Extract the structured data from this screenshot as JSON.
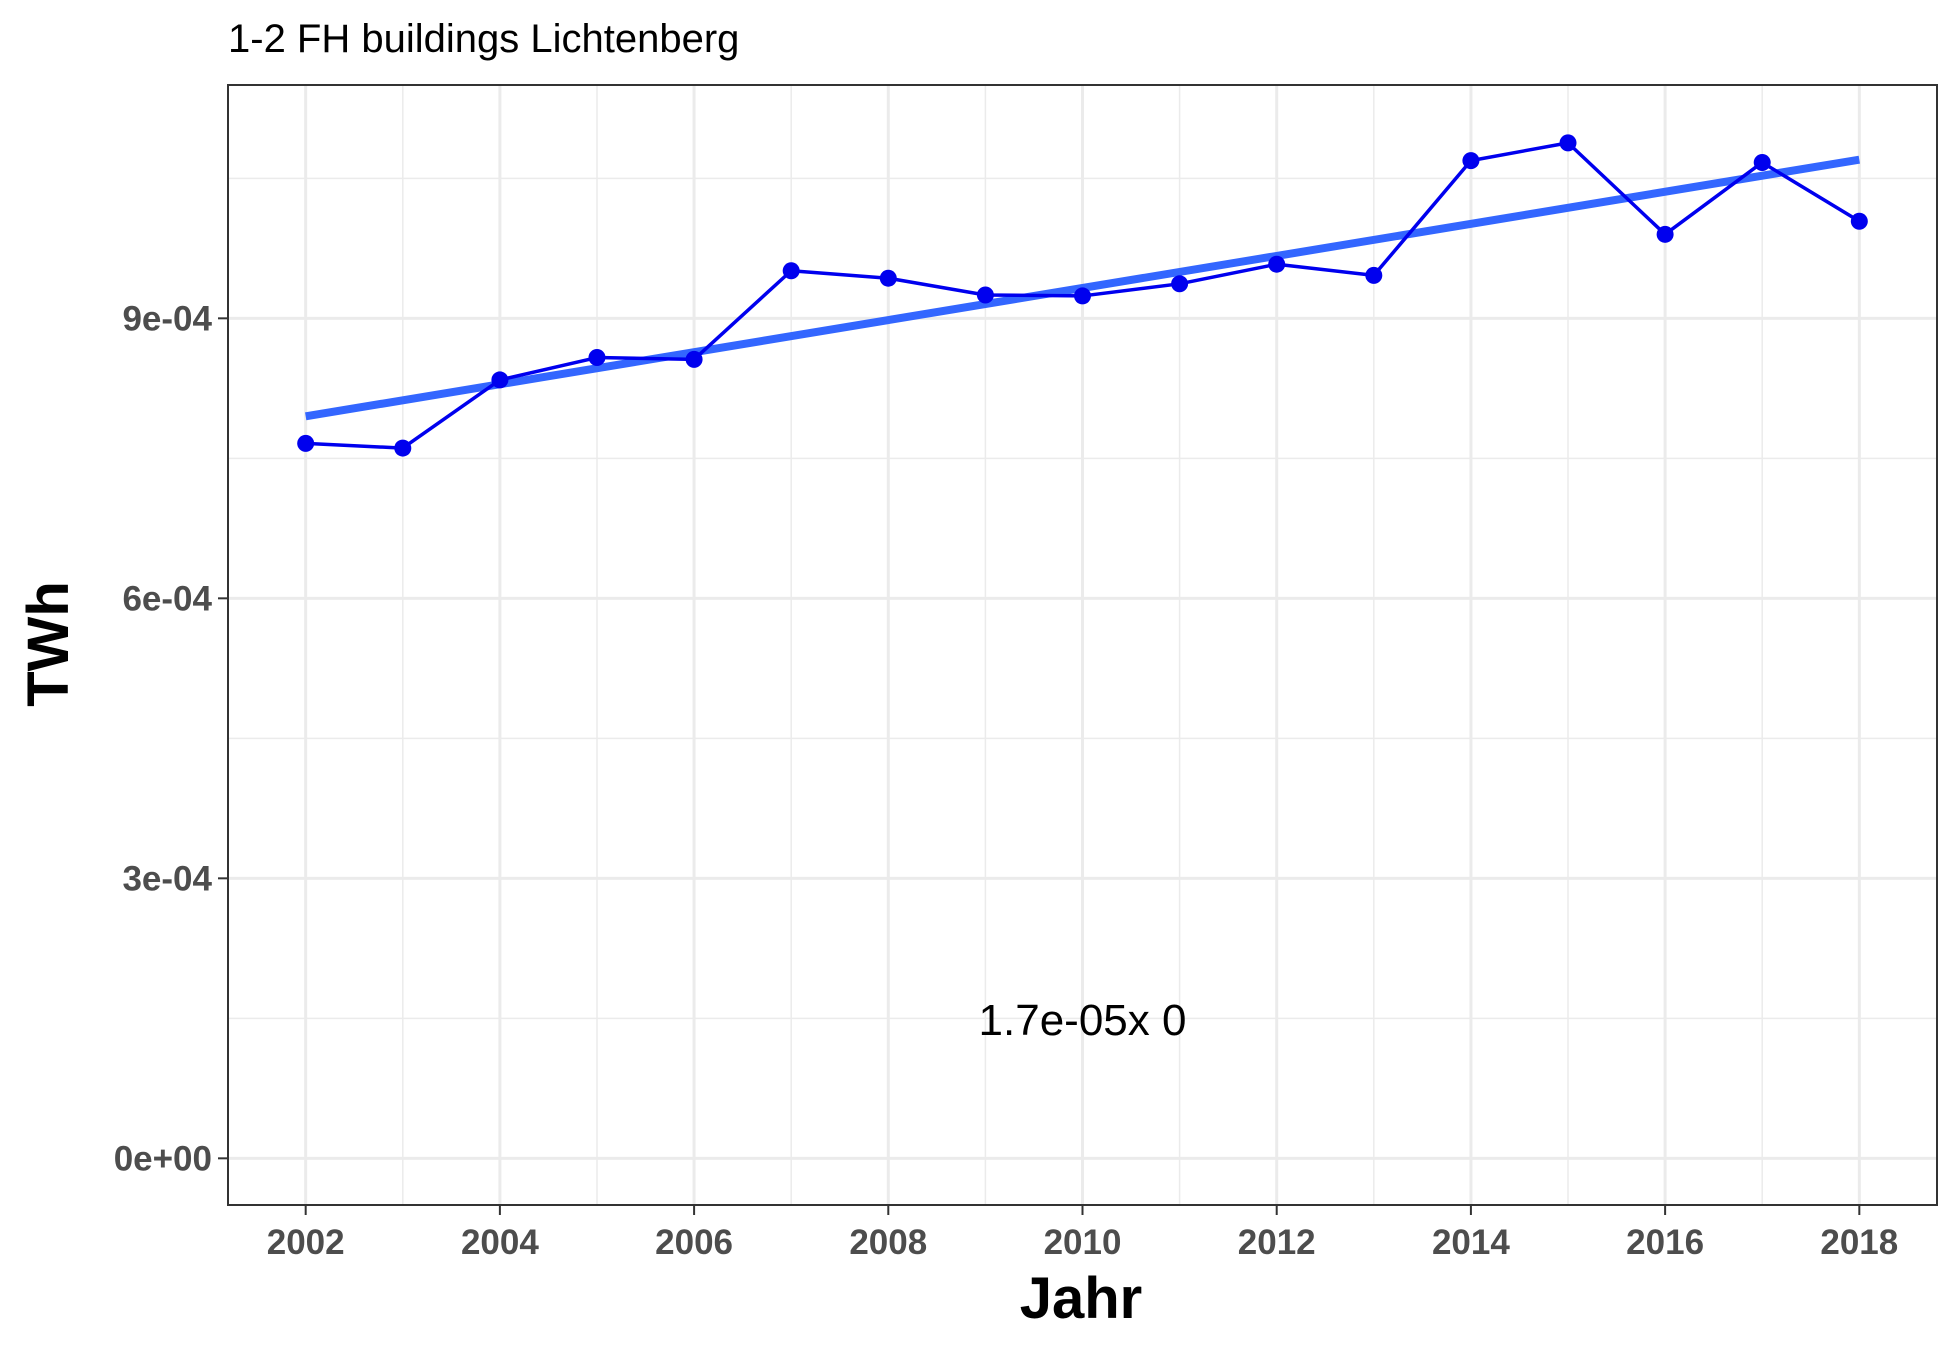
{
  "chart_data": {
    "type": "line",
    "title": "1-2 FH buildings Lichtenberg",
    "xlabel": "Jahr",
    "ylabel": "TWh",
    "x": [
      2002,
      2003,
      2004,
      2005,
      2006,
      2007,
      2008,
      2009,
      2010,
      2011,
      2012,
      2013,
      2014,
      2015,
      2016,
      2017,
      2018
    ],
    "series": [
      {
        "values": [
          0.000766,
          0.000761,
          0.000834,
          0.000858,
          0.000856,
          0.000951,
          0.000943,
          0.000925,
          0.000924,
          0.000937,
          0.000958,
          0.000946,
          0.001069,
          0.001088,
          0.00099,
          0.001067,
          0.001004
        ],
        "color": "#0000ee"
      }
    ],
    "trend": {
      "x": [
        2002,
        2018
      ],
      "y": [
        0.000795,
        0.00107
      ],
      "color": "#3366ff"
    },
    "annotation": {
      "text": "1.7e-05x 0",
      "x": 2010,
      "y": 0.000148
    },
    "xlim": [
      2001.2,
      2018.8
    ],
    "ylim": [
      -5e-05,
      0.00115
    ],
    "x_ticks": [
      2002,
      2004,
      2006,
      2008,
      2010,
      2012,
      2014,
      2016,
      2018
    ],
    "y_ticks": [
      0,
      0.0003,
      0.0006,
      0.0009
    ],
    "y_tick_labels": [
      "0e+00",
      "3e-04",
      "6e-04",
      "9e-04"
    ],
    "grid": true,
    "legend": "none"
  }
}
